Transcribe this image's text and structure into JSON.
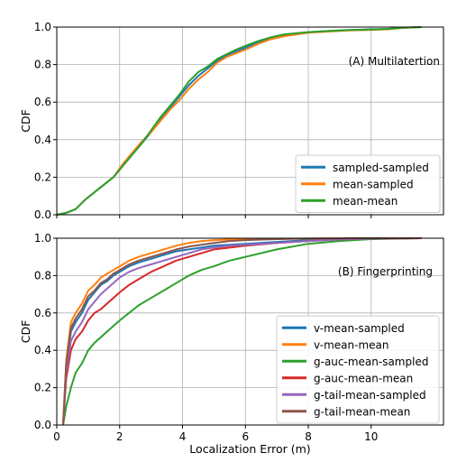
{
  "chart_data": [
    {
      "type": "line",
      "annotation": "(A) Multilatertion",
      "xlabel": "",
      "ylabel": "CDF",
      "xlim": [
        0,
        12.3
      ],
      "ylim": [
        0,
        1.0
      ],
      "xticks": [
        0,
        2,
        4,
        6,
        8,
        10
      ],
      "yticks": [
        0.0,
        0.2,
        0.4,
        0.6,
        0.8,
        1.0
      ],
      "xtick_labels": [],
      "ytick_labels": [
        "0.0",
        "0.2",
        "0.4",
        "0.6",
        "0.8",
        "1.0"
      ],
      "grid": true,
      "legend_position": "lower-right",
      "series": [
        {
          "name": "sampled-sampled",
          "color": "#1f77b4",
          "x": [
            0,
            0.3,
            0.6,
            0.9,
            1.2,
            1.5,
            1.8,
            2.1,
            2.4,
            2.7,
            3.0,
            3.3,
            3.6,
            3.9,
            4.2,
            4.5,
            4.8,
            5.1,
            5.4,
            5.7,
            6.0,
            6.4,
            6.8,
            7.2,
            7.6,
            8.0,
            8.5,
            9.0,
            9.5,
            10.0,
            10.5,
            11.0,
            11.6
          ],
          "y": [
            0,
            0.01,
            0.03,
            0.08,
            0.12,
            0.16,
            0.2,
            0.26,
            0.32,
            0.38,
            0.44,
            0.51,
            0.57,
            0.63,
            0.69,
            0.74,
            0.78,
            0.82,
            0.85,
            0.87,
            0.89,
            0.92,
            0.94,
            0.955,
            0.965,
            0.972,
            0.978,
            0.982,
            0.985,
            0.988,
            0.99,
            0.996,
            1.0
          ]
        },
        {
          "name": "mean-sampled",
          "color": "#ff7f0e",
          "x": [
            0,
            0.3,
            0.6,
            0.9,
            1.2,
            1.5,
            1.8,
            2.1,
            2.4,
            2.7,
            3.0,
            3.3,
            3.6,
            3.9,
            4.2,
            4.5,
            4.8,
            5.1,
            5.4,
            5.7,
            6.0,
            6.4,
            6.8,
            7.2,
            7.6,
            8.0,
            8.5,
            9.0,
            9.5,
            10.0,
            10.5,
            11.0,
            11.6
          ],
          "y": [
            0,
            0.01,
            0.03,
            0.08,
            0.12,
            0.16,
            0.2,
            0.27,
            0.33,
            0.39,
            0.44,
            0.5,
            0.56,
            0.61,
            0.67,
            0.72,
            0.76,
            0.81,
            0.84,
            0.86,
            0.88,
            0.91,
            0.935,
            0.95,
            0.96,
            0.97,
            0.975,
            0.98,
            0.983,
            0.985,
            0.988,
            0.995,
            1.0
          ]
        },
        {
          "name": "mean-mean",
          "color": "#2ca02c",
          "x": [
            0,
            0.3,
            0.6,
            0.9,
            1.2,
            1.5,
            1.8,
            2.1,
            2.4,
            2.7,
            3.0,
            3.3,
            3.6,
            3.9,
            4.2,
            4.5,
            4.8,
            5.1,
            5.4,
            5.7,
            6.0,
            6.4,
            6.8,
            7.2,
            7.6,
            8.0,
            8.5,
            9.0,
            9.5,
            10.0,
            10.5,
            11.0,
            11.6
          ],
          "y": [
            0,
            0.01,
            0.03,
            0.08,
            0.12,
            0.16,
            0.2,
            0.26,
            0.32,
            0.38,
            0.45,
            0.52,
            0.58,
            0.64,
            0.71,
            0.76,
            0.79,
            0.83,
            0.855,
            0.88,
            0.9,
            0.925,
            0.945,
            0.96,
            0.967,
            0.973,
            0.978,
            0.982,
            0.985,
            0.987,
            0.99,
            0.996,
            1.0
          ]
        }
      ]
    },
    {
      "type": "line",
      "annotation": "(B) Fingerprinting",
      "xlabel": "Localization Error (m)",
      "ylabel": "CDF",
      "xlim": [
        0,
        12.3
      ],
      "ylim": [
        0,
        1.0
      ],
      "xticks": [
        0,
        2,
        4,
        6,
        8,
        10
      ],
      "yticks": [
        0.0,
        0.2,
        0.4,
        0.6,
        0.8,
        1.0
      ],
      "xtick_labels": [
        "0",
        "2",
        "4",
        "6",
        "8",
        "10"
      ],
      "ytick_labels": [
        "0.0",
        "0.2",
        "0.4",
        "0.6",
        "0.8",
        "1.0"
      ],
      "grid": true,
      "legend_position": "lower-right",
      "series": [
        {
          "name": "v-mean-sampled",
          "color": "#1f77b4",
          "x": [
            0.2,
            0.3,
            0.45,
            0.6,
            0.8,
            1.0,
            1.2,
            1.4,
            1.6,
            1.8,
            2.0,
            2.3,
            2.6,
            3.0,
            3.4,
            3.8,
            4.2,
            4.6,
            5.0,
            5.5,
            6.0,
            7.0,
            8.0,
            9.0,
            10.0,
            11.6
          ],
          "y": [
            0,
            0.3,
            0.5,
            0.55,
            0.6,
            0.67,
            0.71,
            0.75,
            0.77,
            0.8,
            0.82,
            0.85,
            0.87,
            0.89,
            0.91,
            0.93,
            0.94,
            0.95,
            0.96,
            0.965,
            0.97,
            0.98,
            0.99,
            0.995,
            0.998,
            1.0
          ]
        },
        {
          "name": "v-mean-mean",
          "color": "#ff7f0e",
          "x": [
            0.2,
            0.3,
            0.45,
            0.6,
            0.8,
            1.0,
            1.2,
            1.4,
            1.6,
            1.8,
            2.0,
            2.3,
            2.6,
            3.0,
            3.4,
            3.8,
            4.2,
            4.6,
            5.0,
            5.5,
            6.0,
            7.0,
            8.0,
            9.0,
            10.0,
            11.6
          ],
          "y": [
            0,
            0.35,
            0.55,
            0.6,
            0.65,
            0.72,
            0.75,
            0.79,
            0.81,
            0.83,
            0.85,
            0.88,
            0.9,
            0.92,
            0.94,
            0.96,
            0.975,
            0.985,
            0.99,
            0.993,
            0.995,
            0.997,
            0.998,
            0.999,
            1.0,
            1.0
          ]
        },
        {
          "name": "g-auc-mean-sampled",
          "color": "#2ca02c",
          "x": [
            0.2,
            0.3,
            0.45,
            0.6,
            0.8,
            1.0,
            1.2,
            1.4,
            1.6,
            1.8,
            2.0,
            2.3,
            2.6,
            3.0,
            3.4,
            3.8,
            4.2,
            4.6,
            5.0,
            5.5,
            6.0,
            7.0,
            8.0,
            9.0,
            10.0,
            11.6
          ],
          "y": [
            0,
            0.1,
            0.2,
            0.28,
            0.33,
            0.4,
            0.44,
            0.47,
            0.5,
            0.53,
            0.56,
            0.6,
            0.64,
            0.68,
            0.72,
            0.76,
            0.8,
            0.83,
            0.85,
            0.88,
            0.9,
            0.94,
            0.97,
            0.985,
            0.995,
            1.0
          ]
        },
        {
          "name": "g-auc-mean-mean",
          "color": "#d62728",
          "x": [
            0.2,
            0.3,
            0.45,
            0.6,
            0.8,
            1.0,
            1.2,
            1.4,
            1.6,
            1.8,
            2.0,
            2.3,
            2.6,
            3.0,
            3.4,
            3.8,
            4.2,
            4.6,
            5.0,
            5.5,
            6.0,
            7.0,
            8.0,
            9.0,
            10.0,
            11.6
          ],
          "y": [
            0,
            0.25,
            0.4,
            0.46,
            0.5,
            0.56,
            0.6,
            0.62,
            0.65,
            0.68,
            0.71,
            0.75,
            0.78,
            0.82,
            0.85,
            0.88,
            0.9,
            0.92,
            0.94,
            0.95,
            0.96,
            0.975,
            0.985,
            0.993,
            0.998,
            1.0
          ]
        },
        {
          "name": "g-tail-mean-sampled",
          "color": "#9467bd",
          "x": [
            0.2,
            0.3,
            0.45,
            0.6,
            0.8,
            1.0,
            1.2,
            1.4,
            1.6,
            1.8,
            2.0,
            2.3,
            2.6,
            3.0,
            3.4,
            3.8,
            4.2,
            4.6,
            5.0,
            5.5,
            6.0,
            7.0,
            8.0,
            9.0,
            10.0,
            11.6
          ],
          "y": [
            0,
            0.28,
            0.45,
            0.5,
            0.55,
            0.62,
            0.66,
            0.7,
            0.73,
            0.76,
            0.79,
            0.82,
            0.84,
            0.86,
            0.88,
            0.9,
            0.92,
            0.94,
            0.95,
            0.96,
            0.965,
            0.975,
            0.985,
            0.993,
            0.998,
            1.0
          ]
        },
        {
          "name": "g-tail-mean-mean",
          "color": "#8c564b",
          "x": [
            0.2,
            0.3,
            0.45,
            0.6,
            0.8,
            1.0,
            1.2,
            1.4,
            1.6,
            1.8,
            2.0,
            2.3,
            2.6,
            3.0,
            3.4,
            3.8,
            4.2,
            4.6,
            5.0,
            5.5,
            6.0,
            7.0,
            8.0,
            9.0,
            10.0,
            11.6
          ],
          "y": [
            0,
            0.33,
            0.52,
            0.57,
            0.62,
            0.69,
            0.72,
            0.76,
            0.78,
            0.81,
            0.83,
            0.86,
            0.88,
            0.9,
            0.92,
            0.94,
            0.955,
            0.965,
            0.975,
            0.985,
            0.99,
            0.995,
            0.998,
            0.999,
            1.0,
            1.0
          ]
        }
      ]
    }
  ]
}
